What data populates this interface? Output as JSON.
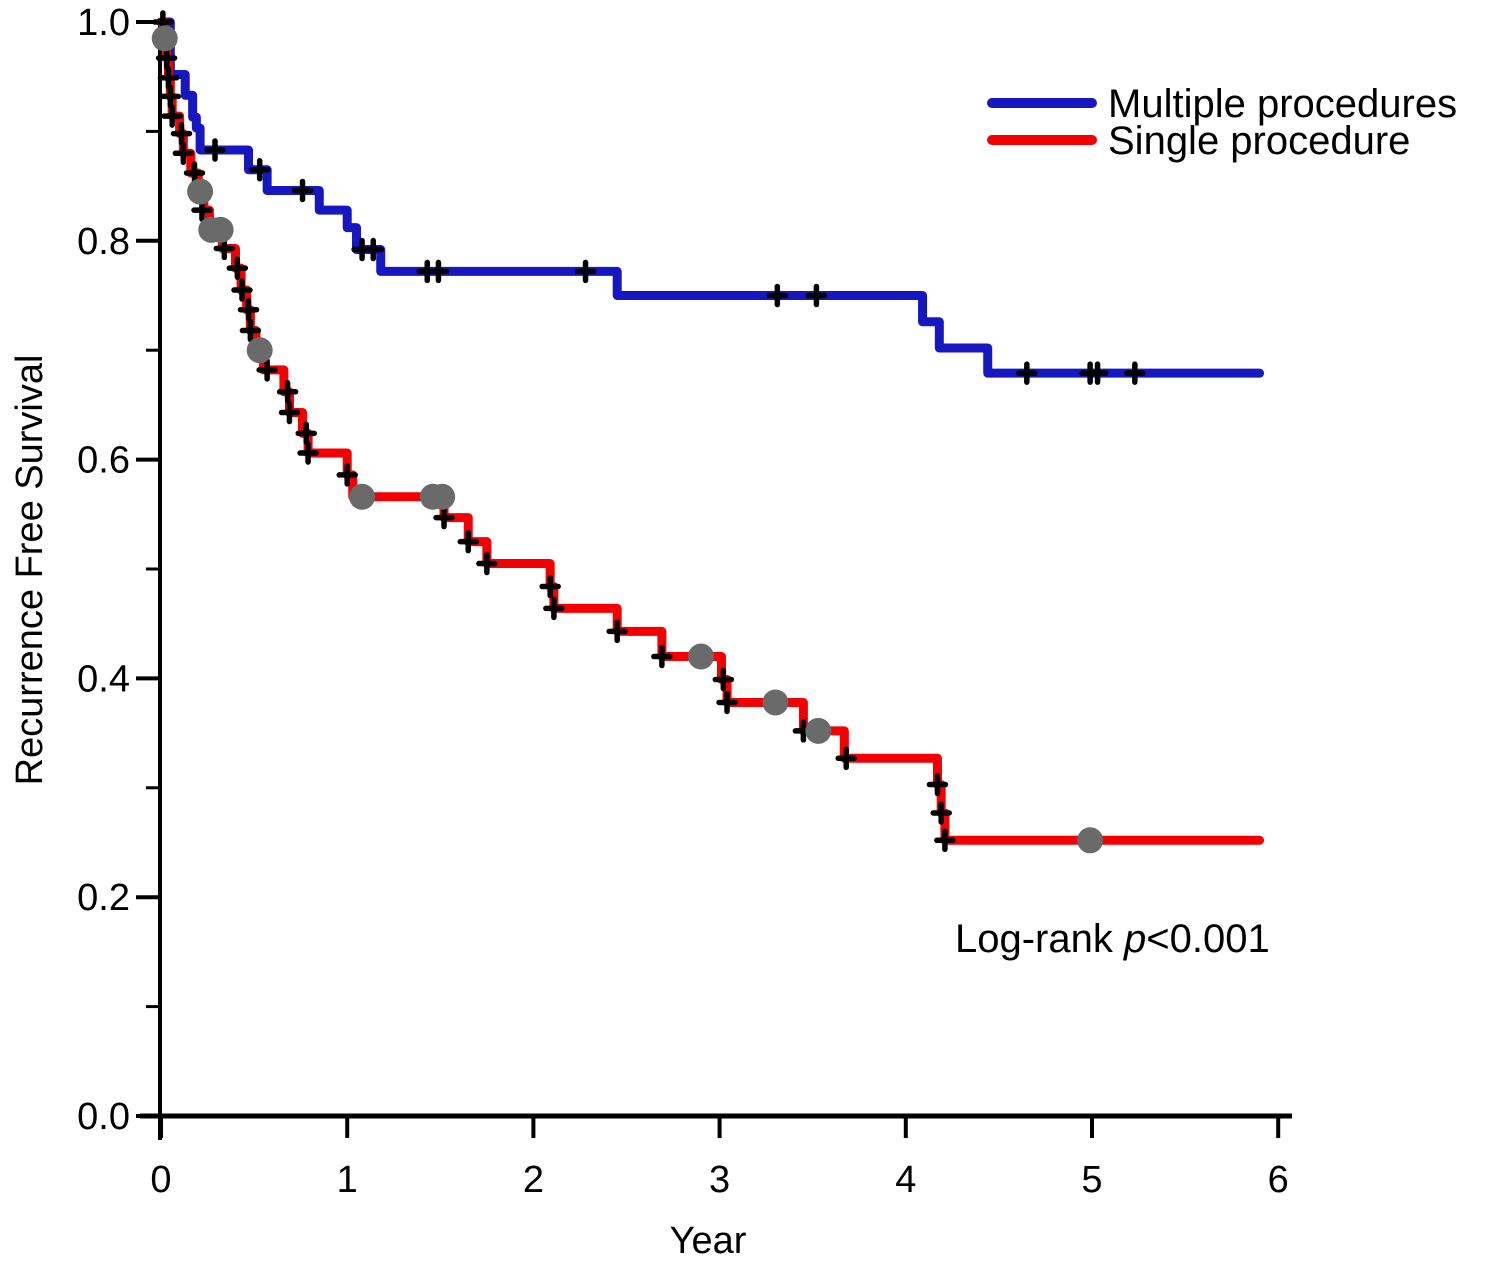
{
  "chart_data": {
    "type": "line",
    "subtype": "kaplan-meier-step-survival",
    "title": "",
    "xlabel": "Year",
    "ylabel": "Recurrence Free Survival",
    "xlim": [
      0,
      6
    ],
    "ylim": [
      0.0,
      1.0
    ],
    "grid": false,
    "legend_position": "top-right",
    "x_end": 5.9,
    "x_ticks": [
      {
        "v": 0,
        "label": "0"
      },
      {
        "v": 1,
        "label": "1"
      },
      {
        "v": 2,
        "label": "2"
      },
      {
        "v": 3,
        "label": "3"
      },
      {
        "v": 4,
        "label": "4"
      },
      {
        "v": 5,
        "label": "5"
      },
      {
        "v": 6,
        "label": "6"
      }
    ],
    "y_ticks_major": [
      {
        "v": 1.0,
        "label": "1.0"
      },
      {
        "v": 0.8,
        "label": "0.8"
      },
      {
        "v": 0.6,
        "label": "0.6"
      },
      {
        "v": 0.4,
        "label": "0.4"
      },
      {
        "v": 0.2,
        "label": "0.2"
      },
      {
        "v": 0.0,
        "label": "0.0"
      }
    ],
    "y_ticks_minor": [
      0.9,
      0.7,
      0.5,
      0.3,
      0.1
    ],
    "annotation": {
      "prefix": "Log-rank ",
      "italic": "p",
      "suffix": "<0.001"
    },
    "series": [
      {
        "name": "Multiple procedures",
        "color": "#1717c1",
        "steps": [
          [
            0,
            1.0
          ],
          [
            0.05,
            0.952
          ],
          [
            0.13,
            0.933
          ],
          [
            0.17,
            0.913
          ],
          [
            0.19,
            0.903
          ],
          [
            0.21,
            0.883
          ],
          [
            0.47,
            0.865
          ],
          [
            0.57,
            0.846
          ],
          [
            0.85,
            0.828
          ],
          [
            1.0,
            0.812
          ],
          [
            1.05,
            0.792
          ],
          [
            1.18,
            0.772
          ],
          [
            2.45,
            0.75
          ],
          [
            4.09,
            0.726
          ],
          [
            4.18,
            0.702
          ],
          [
            4.44,
            0.679
          ]
        ],
        "censors": [
          [
            0.29,
            0.883
          ],
          [
            0.53,
            0.865
          ],
          [
            0.76,
            0.846
          ],
          [
            1.08,
            0.792
          ],
          [
            1.14,
            0.792
          ],
          [
            1.43,
            0.772
          ],
          [
            1.49,
            0.772
          ],
          [
            2.28,
            0.772
          ],
          [
            3.31,
            0.75
          ],
          [
            3.52,
            0.75
          ],
          [
            4.65,
            0.679
          ],
          [
            4.99,
            0.679
          ],
          [
            5.03,
            0.679
          ],
          [
            5.23,
            0.679
          ]
        ],
        "dots": []
      },
      {
        "name": "Single procedure",
        "color": "#f40000",
        "steps": [
          [
            0,
            1.0
          ],
          [
            0.02,
            0.985
          ],
          [
            0.03,
            0.967
          ],
          [
            0.04,
            0.949
          ],
          [
            0.05,
            0.932
          ],
          [
            0.06,
            0.914
          ],
          [
            0.1,
            0.898
          ],
          [
            0.12,
            0.88
          ],
          [
            0.16,
            0.862
          ],
          [
            0.2,
            0.845
          ],
          [
            0.23,
            0.828
          ],
          [
            0.26,
            0.81
          ],
          [
            0.33,
            0.793
          ],
          [
            0.4,
            0.775
          ],
          [
            0.43,
            0.755
          ],
          [
            0.46,
            0.737
          ],
          [
            0.48,
            0.718
          ],
          [
            0.51,
            0.7
          ],
          [
            0.55,
            0.682
          ],
          [
            0.66,
            0.662
          ],
          [
            0.69,
            0.643
          ],
          [
            0.76,
            0.624
          ],
          [
            0.79,
            0.606
          ],
          [
            1.0,
            0.586
          ],
          [
            1.03,
            0.566
          ],
          [
            1.52,
            0.547
          ],
          [
            1.65,
            0.525
          ],
          [
            1.75,
            0.505
          ],
          [
            2.09,
            0.484
          ],
          [
            2.11,
            0.464
          ],
          [
            2.45,
            0.443
          ],
          [
            2.69,
            0.42
          ],
          [
            3.01,
            0.399
          ],
          [
            3.04,
            0.378
          ],
          [
            3.45,
            0.352
          ],
          [
            3.67,
            0.327
          ],
          [
            4.17,
            0.303
          ],
          [
            4.19,
            0.277
          ],
          [
            4.21,
            0.252
          ]
        ],
        "censors": [
          [
            0.01,
            1.0
          ],
          [
            0.03,
            0.967
          ],
          [
            0.04,
            0.949
          ],
          [
            0.05,
            0.932
          ],
          [
            0.06,
            0.914
          ],
          [
            0.11,
            0.898
          ],
          [
            0.12,
            0.88
          ],
          [
            0.18,
            0.862
          ],
          [
            0.22,
            0.828
          ],
          [
            0.34,
            0.793
          ],
          [
            0.41,
            0.775
          ],
          [
            0.435,
            0.755
          ],
          [
            0.47,
            0.737
          ],
          [
            0.48,
            0.718
          ],
          [
            0.57,
            0.682
          ],
          [
            0.68,
            0.662
          ],
          [
            0.69,
            0.643
          ],
          [
            0.78,
            0.624
          ],
          [
            0.79,
            0.606
          ],
          [
            1.0,
            0.586
          ],
          [
            1.52,
            0.547
          ],
          [
            1.65,
            0.525
          ],
          [
            1.75,
            0.505
          ],
          [
            2.09,
            0.484
          ],
          [
            2.11,
            0.464
          ],
          [
            2.45,
            0.443
          ],
          [
            2.69,
            0.42
          ],
          [
            3.02,
            0.399
          ],
          [
            3.04,
            0.378
          ],
          [
            3.45,
            0.352
          ],
          [
            3.68,
            0.327
          ],
          [
            4.17,
            0.303
          ],
          [
            4.19,
            0.277
          ],
          [
            4.21,
            0.252
          ]
        ],
        "dots": [
          [
            0.02,
            0.985
          ],
          [
            0.21,
            0.845
          ],
          [
            0.27,
            0.81
          ],
          [
            0.32,
            0.81
          ],
          [
            0.53,
            0.7
          ],
          [
            1.08,
            0.566
          ],
          [
            1.46,
            0.566
          ],
          [
            1.51,
            0.566
          ],
          [
            2.9,
            0.42
          ],
          [
            3.3,
            0.378
          ],
          [
            3.53,
            0.352
          ],
          [
            4.99,
            0.252
          ]
        ]
      }
    ],
    "colors": {
      "background": "#ffffff",
      "axis": "#000000",
      "censor_mark": "#000000",
      "event_dot": "#6a6a6a"
    }
  }
}
